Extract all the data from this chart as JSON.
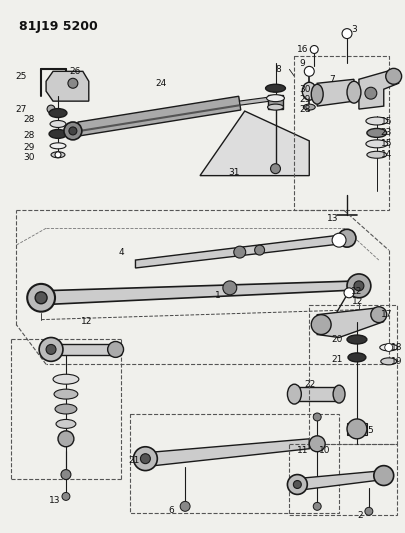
{
  "title": "81J19 5200",
  "bg_color": "#f0f0ec",
  "line_color": "#1a1a1a",
  "label_color": "#111111",
  "fig_width": 4.06,
  "fig_height": 5.33,
  "dpi": 100
}
